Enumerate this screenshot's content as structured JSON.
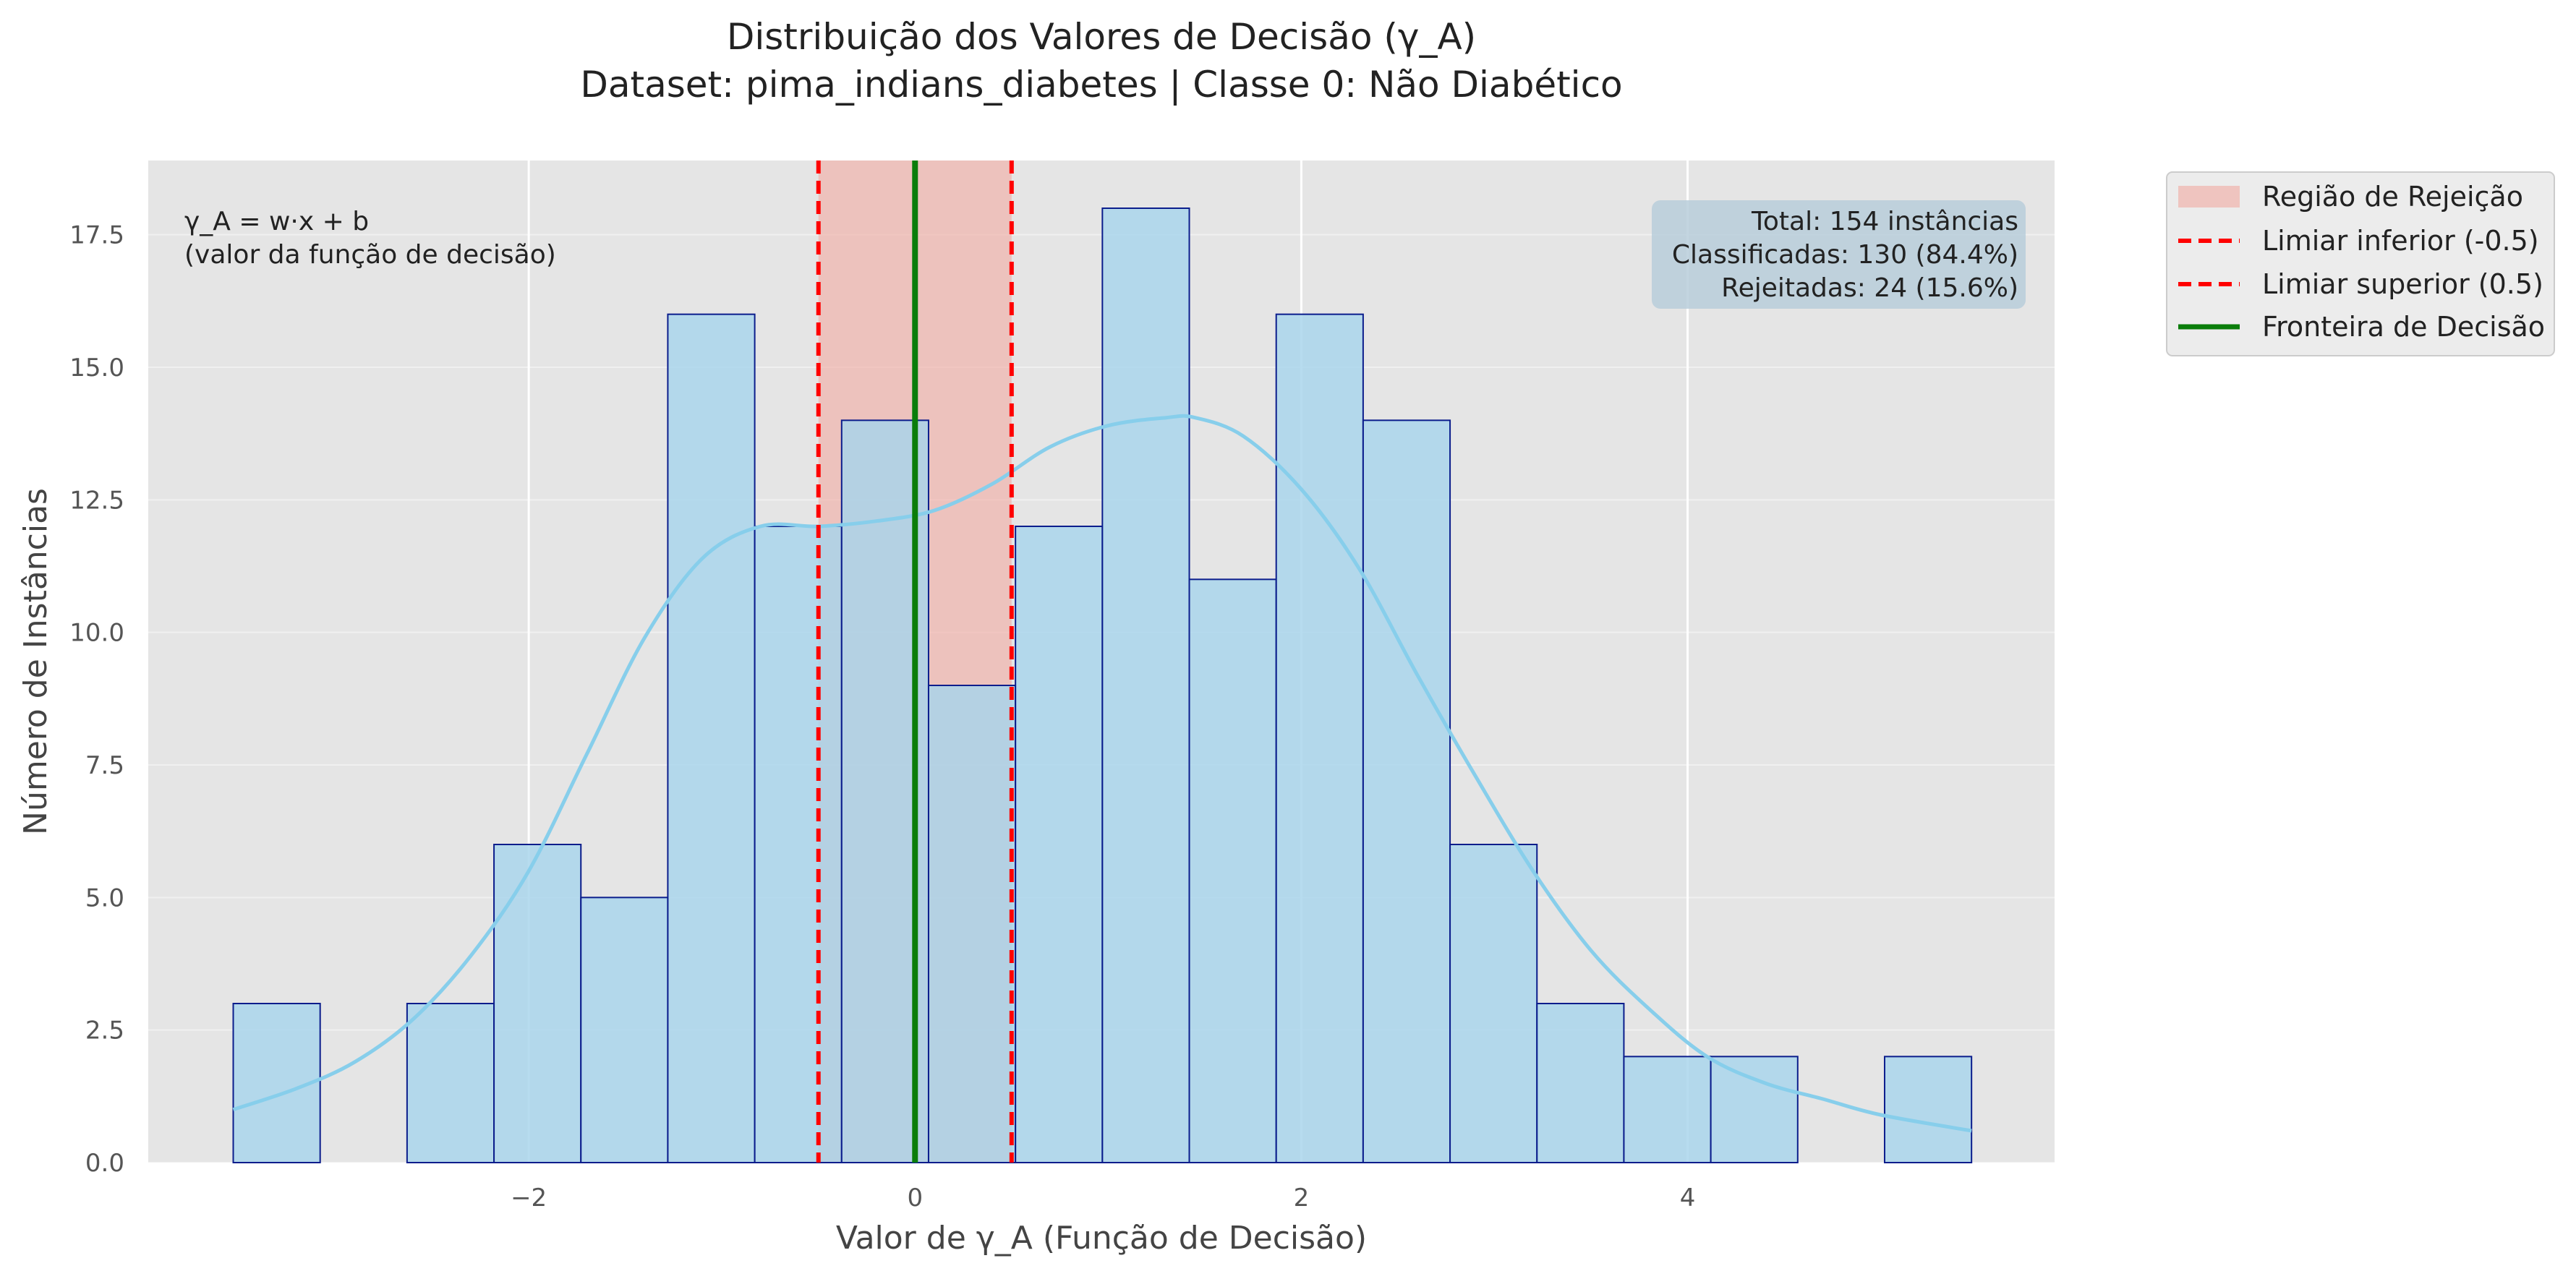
{
  "chart_data": {
    "type": "bar",
    "title": "Distribuição dos Valores de Decisão (γ_A)",
    "subtitle": "Dataset: pima_indians_diabetes | Classe 0: Não Diabético",
    "xlabel": "Valor de γ_A (Função de Decisão)",
    "ylabel": "Número de Instâncias",
    "xlim": [
      -3.97,
      5.9
    ],
    "ylim": [
      0,
      18.9
    ],
    "x_ticks": [
      -2,
      0,
      2,
      4
    ],
    "x_tick_labels": [
      "−2",
      "0",
      "2",
      "4"
    ],
    "y_ticks": [
      0,
      2.5,
      5,
      7.5,
      10,
      12.5,
      15,
      17.5
    ],
    "y_tick_labels": [
      "0.0",
      "2.5",
      "5.0",
      "7.5",
      "10.0",
      "12.5",
      "15.0",
      "17.5"
    ],
    "grid": true,
    "legend_position": "outside-top-right",
    "histogram": {
      "name": "",
      "bins": [
        {
          "start": -3.53,
          "end": -3.08,
          "count": 3
        },
        {
          "start": -3.08,
          "end": -2.63,
          "count": 0
        },
        {
          "start": -2.63,
          "end": -2.18,
          "count": 3
        },
        {
          "start": -2.18,
          "end": -1.73,
          "count": 6
        },
        {
          "start": -1.73,
          "end": -1.28,
          "count": 5
        },
        {
          "start": -1.28,
          "end": -0.83,
          "count": 16
        },
        {
          "start": -0.83,
          "end": -0.38,
          "count": 12
        },
        {
          "start": -0.38,
          "end": 0.07,
          "count": 14
        },
        {
          "start": 0.07,
          "end": 0.52,
          "count": 9
        },
        {
          "start": 0.52,
          "end": 0.97,
          "count": 12
        },
        {
          "start": 0.97,
          "end": 1.42,
          "count": 18
        },
        {
          "start": 1.42,
          "end": 1.87,
          "count": 11
        },
        {
          "start": 1.87,
          "end": 2.32,
          "count": 16
        },
        {
          "start": 2.32,
          "end": 2.77,
          "count": 14
        },
        {
          "start": 2.77,
          "end": 3.22,
          "count": 6
        },
        {
          "start": 3.22,
          "end": 3.67,
          "count": 3
        },
        {
          "start": 3.67,
          "end": 4.12,
          "count": 2
        },
        {
          "start": 4.12,
          "end": 4.57,
          "count": 2
        },
        {
          "start": 4.57,
          "end": 5.02,
          "count": 0
        },
        {
          "start": 5.02,
          "end": 5.47,
          "count": 2
        }
      ]
    },
    "kde": {
      "x": [
        -3.53,
        -3.2,
        -2.9,
        -2.6,
        -2.3,
        -2.0,
        -1.7,
        -1.4,
        -1.1,
        -0.8,
        -0.5,
        -0.2,
        0.1,
        0.4,
        0.7,
        1.0,
        1.3,
        1.45,
        1.7,
        2.0,
        2.3,
        2.6,
        2.9,
        3.2,
        3.5,
        3.8,
        4.1,
        4.4,
        4.7,
        5.0,
        5.47
      ],
      "y": [
        1.0,
        1.4,
        1.9,
        2.7,
        3.9,
        5.5,
        7.7,
        9.9,
        11.4,
        12.0,
        12.0,
        12.1,
        12.3,
        12.8,
        13.5,
        13.9,
        14.05,
        14.05,
        13.7,
        12.7,
        11.2,
        9.2,
        7.3,
        5.5,
        4.0,
        2.9,
        2.0,
        1.5,
        1.2,
        0.9,
        0.6
      ]
    },
    "rejection_region": {
      "label": "Região de Rejeição",
      "from": -0.5,
      "to": 0.5
    },
    "lower_threshold": {
      "label": "Limiar inferior (-0.5)",
      "x": -0.5
    },
    "upper_threshold": {
      "label": "Limiar superior (0.5)",
      "x": 0.5
    },
    "decision_boundary": {
      "label": "Fronteira de Decisão",
      "x": 0
    },
    "annotation_left": [
      "γ_A = w·x + b",
      "(valor da função de decisão)"
    ],
    "stats_box": [
      "Total: 154 instâncias",
      "Classificadas: 130 (84.4%)",
      "Rejeitadas: 24 (15.6%)"
    ],
    "colors": {
      "plot_bg": "#e5e5e5",
      "grid": "#ffffff",
      "bar_fill": "#a7d4eb",
      "bar_edge": "#0b1d8c",
      "kde": "#87ceeb",
      "rejection_fill": "#f1b3ad",
      "threshold": "#ff0000",
      "boundary": "#0a7d0a",
      "stats_box_bg": "#b9cedb"
    }
  }
}
